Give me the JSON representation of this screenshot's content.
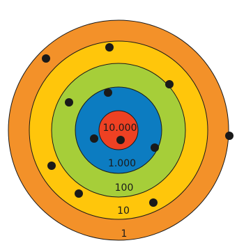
{
  "rings": [
    {
      "id": "ring-1",
      "label": "1",
      "color": "#F39129"
    },
    {
      "id": "ring-10",
      "label": "10",
      "color": "#FFC60B"
    },
    {
      "id": "ring-100",
      "label": "100",
      "color": "#A6CE39"
    },
    {
      "id": "ring-1000",
      "label": "1.000",
      "color": "#0C7CC1"
    },
    {
      "id": "ring-10000",
      "label": "10.000",
      "color": "#EE4123"
    }
  ],
  "point_color": "#1a1a1a"
}
